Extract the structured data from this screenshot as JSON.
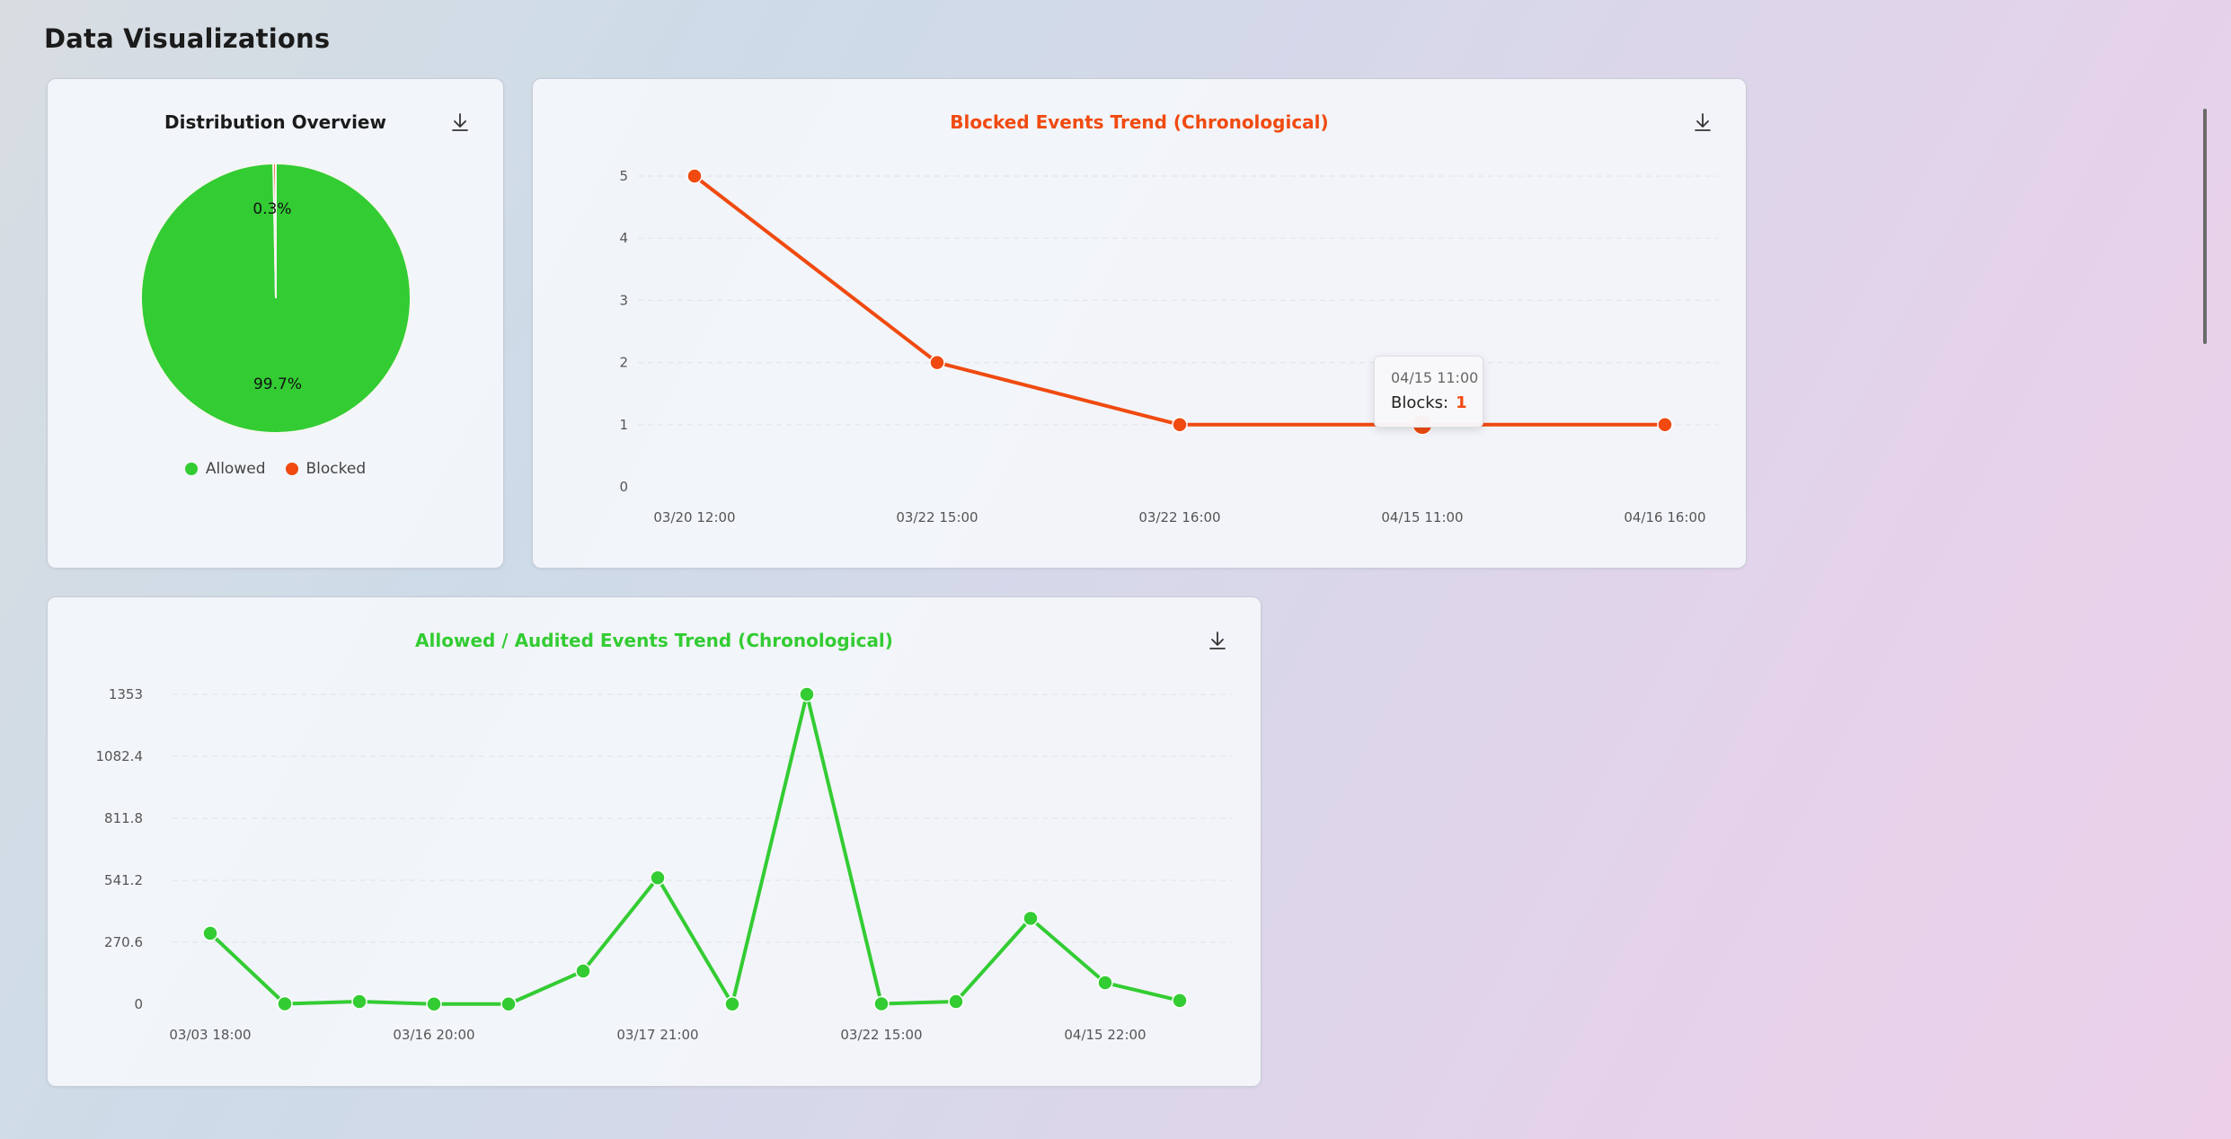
{
  "page": {
    "title": "Data Visualizations"
  },
  "colors": {
    "allowed": "#33cc33",
    "blocked": "#f04a10",
    "grid": "#e3e6ea",
    "axis_text": "#555555"
  },
  "icons": {
    "download": "download-icon"
  },
  "pie": {
    "title": "Distribution Overview",
    "labels": {
      "small": "0.3%",
      "large": "99.7%"
    },
    "legend": [
      {
        "label": "Allowed",
        "color": "#33cc33"
      },
      {
        "label": "Blocked",
        "color": "#f04a10"
      }
    ]
  },
  "blocked_chart": {
    "title": "Blocked Events Trend (Chronological)"
  },
  "allowed_chart": {
    "title": "Allowed / Audited Events Trend (Chronological)"
  },
  "tooltip": {
    "date": "04/15 11:00",
    "key": "Blocks:",
    "value": "1"
  },
  "chart_data": [
    {
      "type": "pie",
      "title": "Distribution Overview",
      "categories": [
        "Allowed",
        "Blocked"
      ],
      "values": [
        99.7,
        0.3
      ],
      "legend": "bottom"
    },
    {
      "type": "line",
      "title": "Blocked Events Trend (Chronological)",
      "categories": [
        "03/20 12:00",
        "03/22 15:00",
        "03/22 16:00",
        "04/15 11:00",
        "04/16 16:00"
      ],
      "values": [
        5,
        2,
        1,
        1,
        1
      ],
      "yticks": [
        "0",
        "1",
        "2",
        "3",
        "4",
        "5"
      ],
      "ylim": [
        0,
        5
      ],
      "grid": true
    },
    {
      "type": "line",
      "title": "Allowed / Audited Events Trend (Chronological)",
      "categories": [
        "03/03 18:00",
        "",
        "",
        "03/16 20:00",
        "",
        "",
        "03/17 21:00",
        "",
        "",
        "03/22 15:00",
        "",
        "",
        "04/15 22:00",
        ""
      ],
      "values": [
        310,
        2,
        12,
        1,
        1,
        145,
        552,
        1,
        1353,
        2,
        12,
        375,
        94,
        16
      ],
      "yticks": [
        "0",
        "270.6",
        "541.2",
        "811.8",
        "1082.4",
        "1353"
      ],
      "ylim": [
        0,
        1353
      ],
      "grid": true
    }
  ]
}
